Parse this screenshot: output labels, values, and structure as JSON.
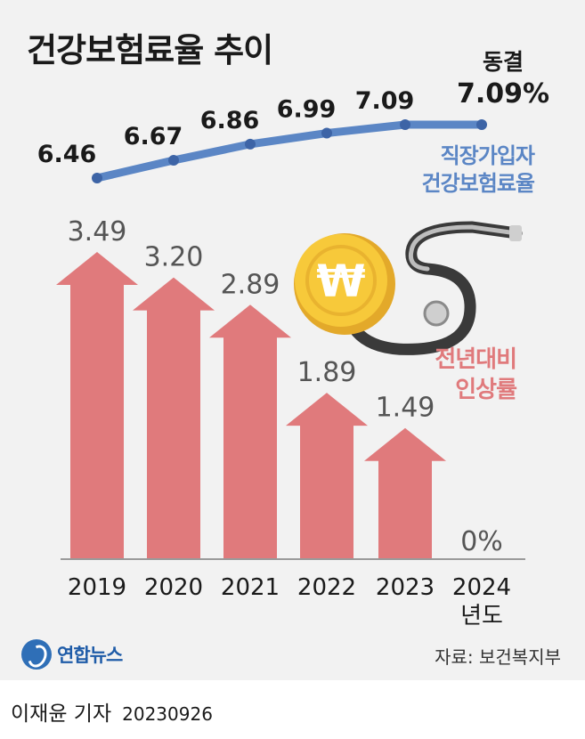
{
  "title": "건강보험료율 추이",
  "freeze": {
    "label": "동결",
    "value": "7.09%"
  },
  "legend": {
    "rate_line": "직장가입자 건강보험료율",
    "rate_line_l1": "직장가입자",
    "rate_line_l2": "건강보험료율",
    "increase": "전년대비 인상률",
    "increase_l1": "전년대비",
    "increase_l2": "인상률"
  },
  "year_unit": "년도",
  "source": "자료: 보건복지부",
  "logo_text": "연합뉴스",
  "byline": {
    "author": "이재윤 기자",
    "date": "20230926"
  },
  "colors": {
    "line": "#5b86c5",
    "arrow": "#e07a7c",
    "coin": "#f2c12e",
    "text": "#1a1a1a",
    "bg": "#f2f2f2"
  },
  "chart_data": [
    {
      "type": "line",
      "title": "직장가입자 건강보험료율",
      "unit": "%",
      "categories": [
        "2019",
        "2020",
        "2021",
        "2022",
        "2023",
        "2024"
      ],
      "values": [
        6.46,
        6.67,
        6.86,
        6.99,
        7.09,
        7.09
      ],
      "labels": [
        "6.46",
        "6.67",
        "6.86",
        "6.99",
        "7.09",
        "7.09%"
      ]
    },
    {
      "type": "bar",
      "title": "전년대비 인상률",
      "unit": "%",
      "categories": [
        "2019",
        "2020",
        "2021",
        "2022",
        "2023",
        "2024"
      ],
      "values": [
        3.49,
        3.2,
        2.89,
        1.89,
        1.49,
        0
      ],
      "labels": [
        "3.49",
        "3.20",
        "2.89",
        "1.89",
        "1.49",
        "0%"
      ],
      "xlabel": "년도"
    }
  ]
}
